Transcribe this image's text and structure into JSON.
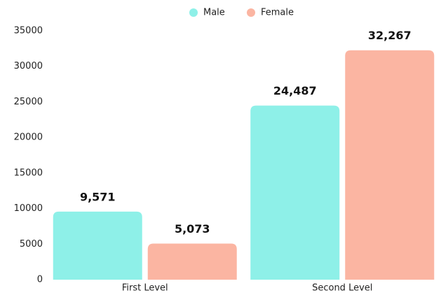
{
  "chart_data": {
    "type": "bar",
    "categories": [
      "First Level",
      "Second Level"
    ],
    "series": [
      {
        "name": "Male",
        "color": "#8ef0e8",
        "values": [
          9571,
          24487
        ],
        "value_labels": [
          "9,571",
          "24,487"
        ]
      },
      {
        "name": "Female",
        "color": "#fbb5a2",
        "values": [
          5073,
          32267
        ],
        "value_labels": [
          "5,073",
          "32,267"
        ]
      }
    ],
    "ylim": [
      0,
      35000
    ],
    "yticks": [
      0,
      5000,
      10000,
      15000,
      20000,
      25000,
      30000,
      35000
    ],
    "legend": "top"
  }
}
